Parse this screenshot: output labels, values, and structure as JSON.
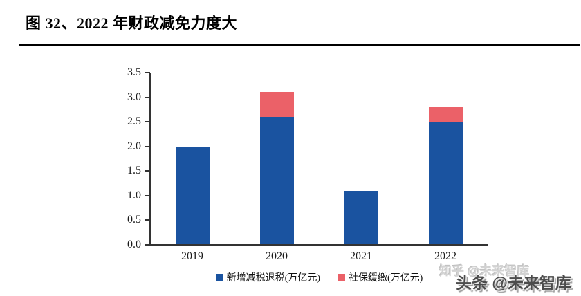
{
  "title": "图 32、2022 年财政减免力度大",
  "colors": {
    "bar_blue": "#1A53A0",
    "bar_red": "#EB6168",
    "axis": "#333333",
    "rule": "#000000"
  },
  "chart_data": {
    "type": "bar",
    "stacked": true,
    "title": "2022 年财政减免力度大",
    "categories": [
      "2019",
      "2020",
      "2021",
      "2022"
    ],
    "series": [
      {
        "name": "新增减税退税(万亿元)",
        "color_key": "bar_blue",
        "values": [
          2.0,
          2.6,
          1.1,
          2.5
        ]
      },
      {
        "name": "社保缓缴(万亿元)",
        "color_key": "bar_red",
        "values": [
          0,
          0.5,
          0,
          0.3
        ]
      }
    ],
    "ylim": [
      0,
      3.5
    ],
    "ytick_step": 0.5,
    "ytick_labels": [
      "0.0",
      "0.5",
      "1.0",
      "1.5",
      "2.0",
      "2.5",
      "3.0",
      "3.5"
    ],
    "grid": false,
    "legend_position": "bottom"
  },
  "watermarks": {
    "zhihu": "知乎 @未来智库",
    "toutiao": "头条 @未来智库"
  }
}
